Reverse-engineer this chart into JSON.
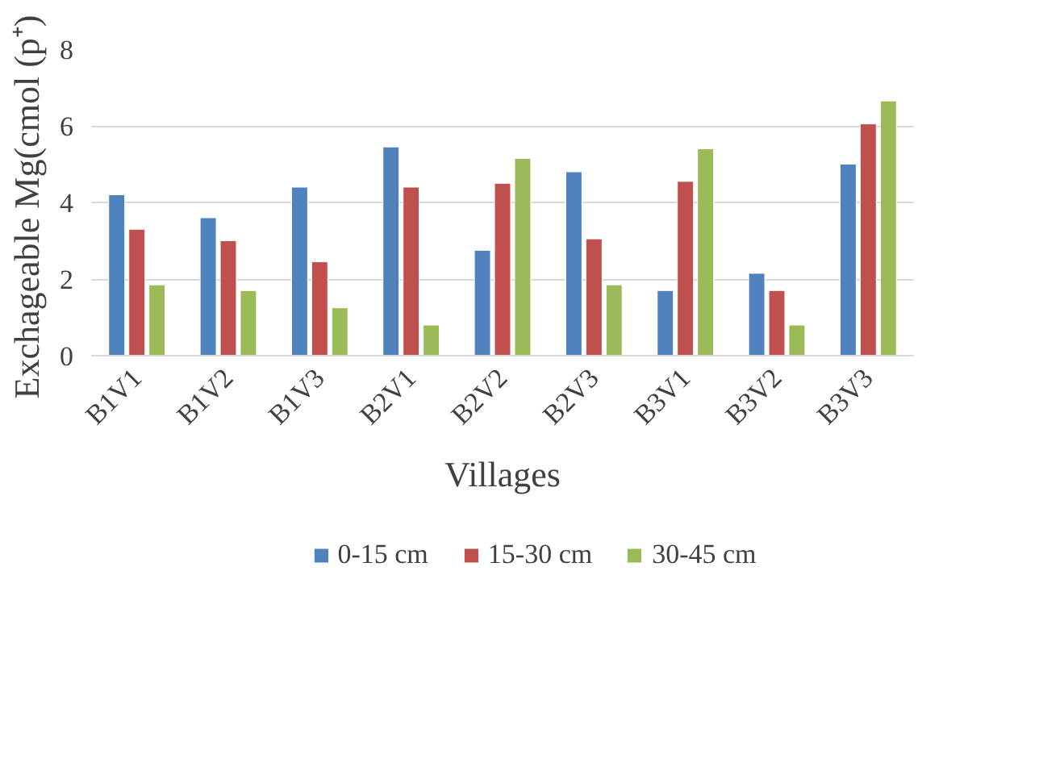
{
  "chart_data": {
    "type": "bar",
    "xlabel": "Villages",
    "ylabel": "Exchageable  Mg(cmol (p⁺)",
    "categories": [
      "B1V1",
      "B1V2",
      "B1V3",
      "B2V1",
      "B2V2",
      "B2V3",
      "B3V1",
      "B3V2",
      "B3V3"
    ],
    "series": [
      {
        "name": "0-15 cm",
        "color": "#4f81bd",
        "values": [
          4.2,
          3.6,
          4.4,
          5.45,
          2.75,
          4.8,
          1.7,
          2.15,
          5.0
        ]
      },
      {
        "name": "15-30 cm",
        "color": "#c0504d",
        "values": [
          3.3,
          3.0,
          2.45,
          4.4,
          4.5,
          3.05,
          4.55,
          1.7,
          6.05
        ]
      },
      {
        "name": "30-45 cm",
        "color": "#9bbb59",
        "values": [
          1.85,
          1.7,
          1.25,
          0.8,
          5.15,
          1.85,
          5.4,
          0.8,
          6.65
        ]
      }
    ],
    "ylim": [
      0,
      8
    ],
    "yticks": [
      0,
      2,
      4,
      6,
      8
    ],
    "grid": "y",
    "legend": "bottom"
  }
}
